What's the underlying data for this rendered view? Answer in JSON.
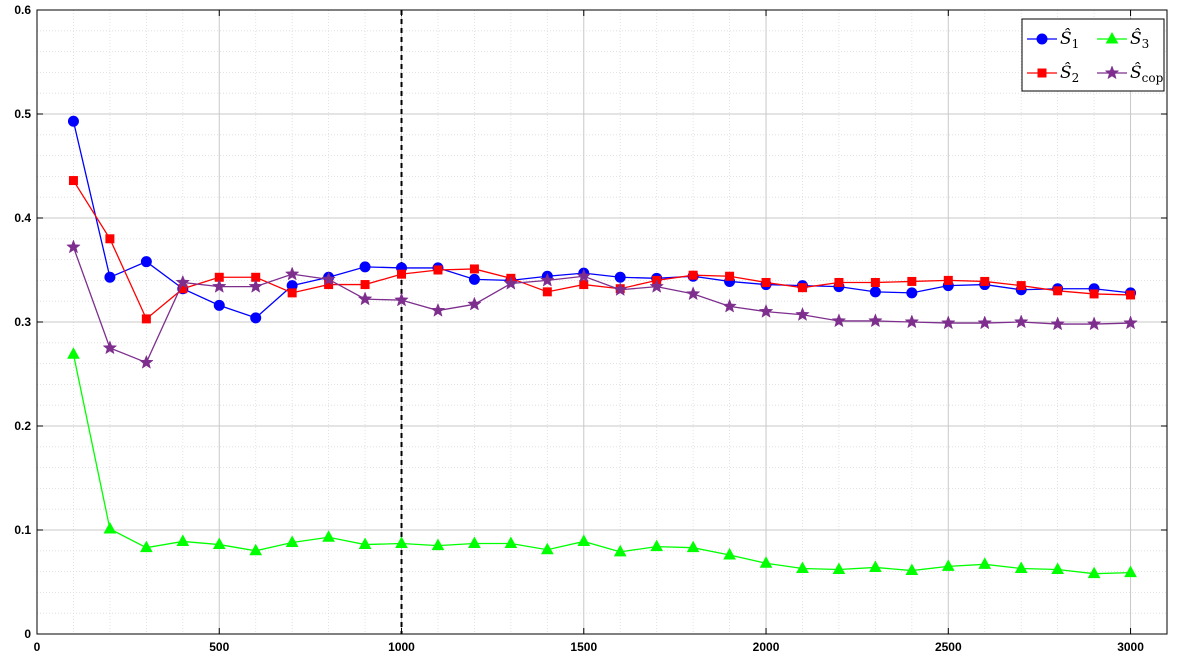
{
  "chart_data": {
    "type": "line",
    "title": "",
    "xlabel": "",
    "ylabel": "",
    "xlim": [
      0,
      3100
    ],
    "ylim": [
      0,
      0.6
    ],
    "xticks": [
      0,
      500,
      1000,
      1500,
      2000,
      2500,
      3000
    ],
    "yticks": [
      0,
      0.1,
      0.2,
      0.3,
      0.4,
      0.5,
      0.6
    ],
    "xtick_labels": [
      "0",
      "500",
      "1000",
      "1500",
      "2000",
      "2500",
      "3000"
    ],
    "ytick_labels": [
      "0",
      "0.1",
      "0.2",
      "0.3",
      "0.4",
      "0.5",
      "0.6"
    ],
    "grid": true,
    "legend_position": "top-right",
    "reference_line": {
      "x": 1000,
      "style": "dashed",
      "color": "#000000"
    },
    "x": [
      100,
      200,
      300,
      400,
      500,
      600,
      700,
      800,
      900,
      1000,
      1100,
      1200,
      1300,
      1400,
      1500,
      1600,
      1700,
      1800,
      1900,
      2000,
      2100,
      2200,
      2300,
      2400,
      2500,
      2600,
      2700,
      2800,
      2900,
      3000
    ],
    "series": [
      {
        "legend_main": "Ŝ",
        "legend_sub": "1",
        "color": "#0000ff",
        "marker": "circle",
        "values": [
          0.493,
          0.343,
          0.358,
          0.332,
          0.316,
          0.304,
          0.335,
          0.343,
          0.353,
          0.352,
          0.352,
          0.341,
          0.34,
          0.344,
          0.347,
          0.343,
          0.342,
          0.344,
          0.339,
          0.336,
          0.335,
          0.334,
          0.329,
          0.328,
          0.335,
          0.336,
          0.331,
          0.332,
          0.332,
          0.328
        ]
      },
      {
        "legend_main": "Ŝ",
        "legend_sub": "2",
        "color": "#ff0000",
        "marker": "square",
        "values": [
          0.436,
          0.38,
          0.303,
          0.332,
          0.343,
          0.343,
          0.328,
          0.336,
          0.336,
          0.346,
          0.35,
          0.351,
          0.342,
          0.329,
          0.336,
          0.332,
          0.34,
          0.345,
          0.344,
          0.338,
          0.333,
          0.338,
          0.338,
          0.339,
          0.34,
          0.339,
          0.335,
          0.33,
          0.327,
          0.326
        ]
      },
      {
        "legend_main": "Ŝ",
        "legend_sub": "3",
        "color": "#00ff00",
        "marker": "triangle",
        "values": [
          0.269,
          0.101,
          0.083,
          0.089,
          0.086,
          0.08,
          0.088,
          0.093,
          0.086,
          0.087,
          0.085,
          0.087,
          0.087,
          0.081,
          0.089,
          0.079,
          0.084,
          0.083,
          0.076,
          0.068,
          0.063,
          0.062,
          0.064,
          0.061,
          0.065,
          0.067,
          0.063,
          0.062,
          0.058,
          0.059
        ]
      },
      {
        "legend_main": "Ŝ",
        "legend_sub": "cop",
        "color": "#7e2f8e",
        "marker": "star",
        "values": [
          0.372,
          0.275,
          0.261,
          0.338,
          0.334,
          0.334,
          0.346,
          0.341,
          0.322,
          0.321,
          0.311,
          0.317,
          0.337,
          0.34,
          0.344,
          0.331,
          0.334,
          0.327,
          0.315,
          0.31,
          0.307,
          0.301,
          0.301,
          0.3,
          0.299,
          0.299,
          0.3,
          0.298,
          0.298,
          0.299
        ]
      }
    ]
  }
}
